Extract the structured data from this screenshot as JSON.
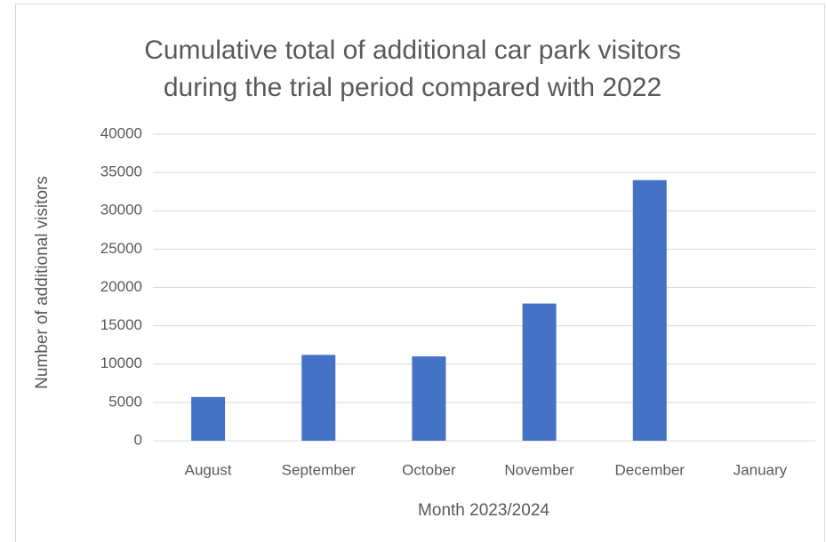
{
  "chart_data": {
    "type": "bar",
    "title": [
      "Cumulative total of additional car park visitors",
      "during the trial period compared with 2022"
    ],
    "x_label": "Month 2023/2024",
    "y_label": "Number of additional visitors",
    "categories": [
      "August",
      "September",
      "October",
      "November",
      "December",
      "January"
    ],
    "values": [
      5700,
      11200,
      11000,
      17900,
      34000,
      null
    ],
    "color": "#4472c4",
    "ylim": [
      0,
      40000
    ],
    "yticks": [
      0,
      5000,
      10000,
      15000,
      20000,
      25000,
      30000,
      35000,
      40000
    ],
    "grid": true
  }
}
